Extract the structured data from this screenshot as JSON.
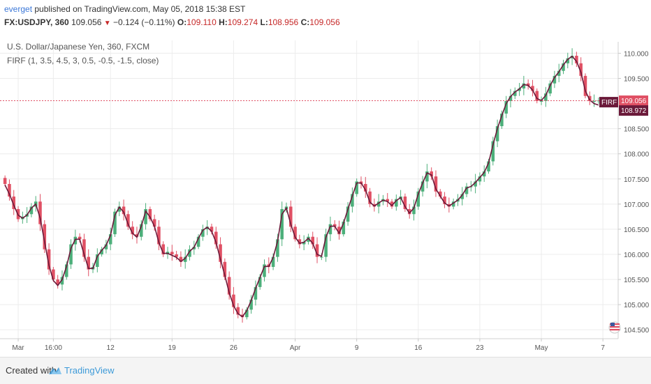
{
  "header": {
    "author": "everget",
    "published": "published on TradingView.com, May 05, 2018 15:38 EST",
    "symbol": "FX:USDJPY, 360",
    "last": "109.056",
    "change": "−0.124 (−0.11%)",
    "o_label": "O:",
    "o_value": "109.110",
    "h_label": "H:",
    "h_value": "109.274",
    "l_label": "L:",
    "l_value": "108.956",
    "c_label": "C:",
    "c_value": "109.056"
  },
  "footer": {
    "created": "Created with",
    "brand": "TradingView"
  },
  "colors": {
    "up": "#4caf7a",
    "down": "#e05064",
    "line": "#6b1a3a",
    "price_line": "#e05064",
    "grid": "#ececec"
  },
  "chart_data": {
    "type": "candlestick",
    "title": "U.S. Dollar/Japanese Yen, 360, FXCM",
    "indicator": "FIRF (1, 3.5, 4.5, 3, 0.5, -0.5, -1.5, close)",
    "ylim": [
      104.35,
      110.2
    ],
    "y_ticks": [
      "110.000",
      "109.500",
      "108.500",
      "108.000",
      "107.500",
      "107.000",
      "106.500",
      "106.000",
      "105.500",
      "105.000",
      "104.500"
    ],
    "y_tick_values": [
      110.0,
      109.5,
      108.5,
      108.0,
      107.5,
      107.0,
      106.5,
      106.0,
      105.5,
      105.0,
      104.5
    ],
    "x_ticks": [
      "Mar",
      "16:00",
      "12",
      "19",
      "26",
      "Apr",
      "9",
      "16",
      "23",
      "May",
      "7"
    ],
    "x_tick_index": [
      3,
      11,
      24,
      38,
      52,
      66,
      80,
      94,
      108,
      122,
      136
    ],
    "last_price": "109.056",
    "last_value": 109.056,
    "indicator_label": "FIRF",
    "indicator_value": "108.972",
    "indicator_last": 108.972,
    "close": [
      107.4,
      107.15,
      106.9,
      106.7,
      106.75,
      106.8,
      106.95,
      107.05,
      106.6,
      106.1,
      105.7,
      105.5,
      105.4,
      105.55,
      105.8,
      106.2,
      106.35,
      106.3,
      105.95,
      105.7,
      105.75,
      106.0,
      106.1,
      106.2,
      106.4,
      106.85,
      106.95,
      106.8,
      106.55,
      106.4,
      106.35,
      106.6,
      106.9,
      106.7,
      106.55,
      106.2,
      106.0,
      106.05,
      106.0,
      105.95,
      105.85,
      105.95,
      106.1,
      106.15,
      106.35,
      106.5,
      106.55,
      106.45,
      106.2,
      105.85,
      105.55,
      105.2,
      104.95,
      104.8,
      104.75,
      104.9,
      105.1,
      105.35,
      105.55,
      105.8,
      105.75,
      105.95,
      106.3,
      106.9,
      106.95,
      106.55,
      106.3,
      106.2,
      106.25,
      106.35,
      106.2,
      105.95,
      105.95,
      106.4,
      106.6,
      106.55,
      106.4,
      106.65,
      106.95,
      107.2,
      107.45,
      107.4,
      107.25,
      107.0,
      106.95,
      107.05,
      107.1,
      107.05,
      106.95,
      107.1,
      107.15,
      106.9,
      106.8,
      106.95,
      107.25,
      107.45,
      107.65,
      107.55,
      107.25,
      107.15,
      107.0,
      106.95,
      107.05,
      107.1,
      107.2,
      107.35,
      107.35,
      107.45,
      107.55,
      107.65,
      107.85,
      108.25,
      108.55,
      108.8,
      109.05,
      109.15,
      109.25,
      109.3,
      109.4,
      109.35,
      109.25,
      109.05,
      109.05,
      109.2,
      109.4,
      109.55,
      109.65,
      109.8,
      109.9,
      109.95,
      109.8,
      109.55,
      109.15,
      109.05,
      109.05,
      109.06
    ],
    "firf": [
      107.38,
      107.2,
      106.98,
      106.78,
      106.72,
      106.78,
      106.92,
      107.0,
      106.72,
      106.25,
      105.78,
      105.48,
      105.38,
      105.5,
      105.76,
      106.12,
      106.3,
      106.3,
      106.0,
      105.72,
      105.72,
      105.96,
      106.08,
      106.18,
      106.38,
      106.78,
      106.94,
      106.84,
      106.6,
      106.42,
      106.34,
      106.56,
      106.86,
      106.74,
      106.56,
      106.24,
      106.02,
      106.02,
      105.98,
      105.94,
      105.86,
      105.92,
      106.06,
      106.14,
      106.32,
      106.48,
      106.54,
      106.46,
      106.24,
      105.9,
      105.58,
      105.24,
      104.98,
      104.82,
      104.76,
      104.88,
      105.08,
      105.32,
      105.54,
      105.76,
      105.76,
      105.94,
      106.26,
      106.8,
      106.92,
      106.6,
      106.34,
      106.22,
      106.24,
      106.32,
      106.22,
      106.0,
      105.96,
      106.34,
      106.56,
      106.56,
      106.42,
      106.62,
      106.9,
      107.16,
      107.42,
      107.42,
      107.28,
      107.04,
      106.96,
      107.02,
      107.08,
      107.05,
      106.97,
      107.07,
      107.13,
      106.95,
      106.82,
      106.92,
      107.2,
      107.42,
      107.62,
      107.58,
      107.3,
      107.16,
      107.02,
      106.96,
      107.02,
      107.08,
      107.18,
      107.32,
      107.35,
      107.43,
      107.53,
      107.63,
      107.82,
      108.18,
      108.5,
      108.76,
      109.0,
      109.14,
      109.23,
      109.29,
      109.38,
      109.36,
      109.27,
      109.1,
      109.06,
      109.16,
      109.36,
      109.52,
      109.63,
      109.77,
      109.88,
      109.94,
      109.84,
      109.62,
      109.25,
      109.07,
      109.0,
      108.97
    ]
  }
}
